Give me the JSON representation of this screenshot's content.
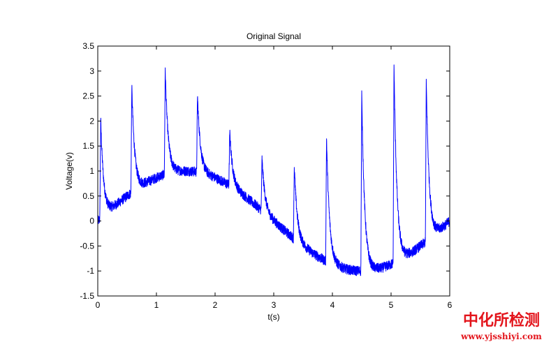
{
  "chart_data": {
    "type": "line",
    "title": "Original Signal",
    "xlabel": "t(s)",
    "ylabel": "Voltage(v)",
    "xlim": [
      0,
      6
    ],
    "ylim": [
      -1.5,
      3.5
    ],
    "xticks": [
      0,
      1,
      2,
      3,
      4,
      5,
      6
    ],
    "yticks": [
      -1.5,
      -1,
      -0.5,
      0,
      0.5,
      1,
      1.5,
      2,
      2.5,
      3,
      3.5
    ],
    "xtick_labels": [
      "0",
      "1",
      "2",
      "3",
      "4",
      "5",
      "6"
    ],
    "ytick_labels": [
      "-1.5",
      "-1",
      "-0.5",
      "0",
      "0.5",
      "1",
      "1.5",
      "2",
      "2.5",
      "3",
      "3.5"
    ],
    "grid": false,
    "legend": "none",
    "series": [
      {
        "color": "#0000ff",
        "description_model": "sin(2*pi*t/6) with additive noise and decaying spikes",
        "base_amplitude": 1,
        "period": 6,
        "noise_amplitude": 0.1,
        "spikes": [
          {
            "t": 0.05,
            "peak": 2.05
          },
          {
            "t": 0.58,
            "peak": 2.7
          },
          {
            "t": 1.15,
            "peak": 3.02
          },
          {
            "t": 1.7,
            "peak": 2.52
          },
          {
            "t": 2.25,
            "peak": 1.78
          },
          {
            "t": 2.8,
            "peak": 1.25
          },
          {
            "t": 3.35,
            "peak": 1.1
          },
          {
            "t": 3.9,
            "peak": 1.68
          },
          {
            "t": 4.5,
            "peak": 2.55
          },
          {
            "t": 5.05,
            "peak": 3.15
          },
          {
            "t": 5.6,
            "peak": 2.82
          }
        ]
      }
    ]
  },
  "watermark": {
    "text": "中化所检测",
    "url": "www.yjsshiyi.com",
    "color": "#e3141b"
  }
}
